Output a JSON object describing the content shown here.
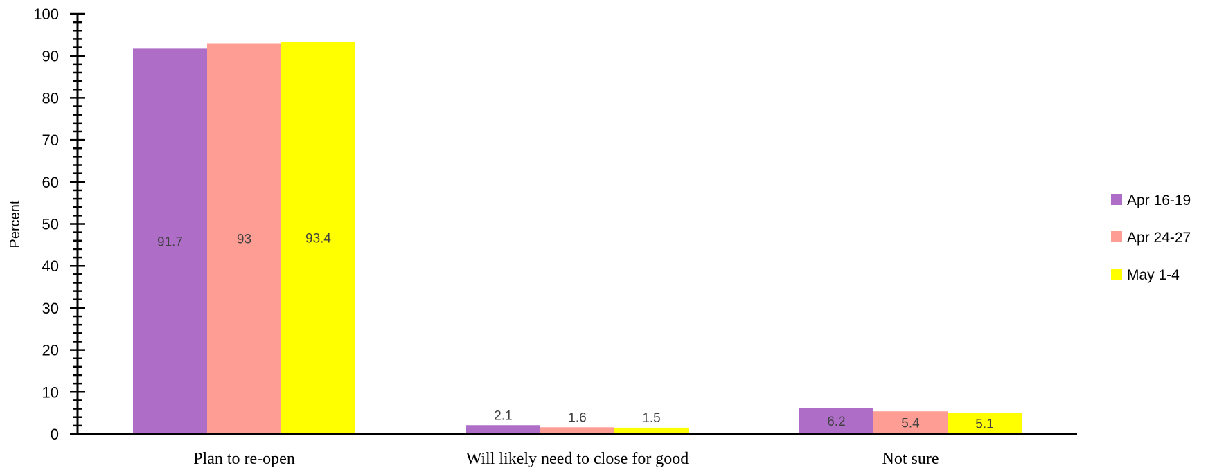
{
  "chart_data": {
    "type": "bar",
    "categories": [
      "Plan to re-open",
      "Will likely need to close for good",
      "Not sure"
    ],
    "series": [
      {
        "name": "Apr 16-19",
        "color": "#AE6EC8",
        "values": [
          91.7,
          2.1,
          6.2
        ]
      },
      {
        "name": "Apr 24-27",
        "color": "#FD9D94",
        "values": [
          93,
          1.6,
          5.4
        ]
      },
      {
        "name": "May 1-4",
        "color": "#FFFF00",
        "values": [
          93.4,
          1.5,
          5.1
        ]
      }
    ],
    "data_labels": [
      [
        "91.7",
        "2.1",
        "6.2"
      ],
      [
        "93",
        "1.6",
        "5.4"
      ],
      [
        "93.4",
        "1.5",
        "5.1"
      ]
    ],
    "ylabel": "Percent",
    "ylim": [
      0,
      100
    ],
    "yticks": [
      "0",
      "10",
      "20",
      "30",
      "40",
      "50",
      "60",
      "70",
      "80",
      "90",
      "100"
    ],
    "grid": false,
    "legend": "right"
  }
}
